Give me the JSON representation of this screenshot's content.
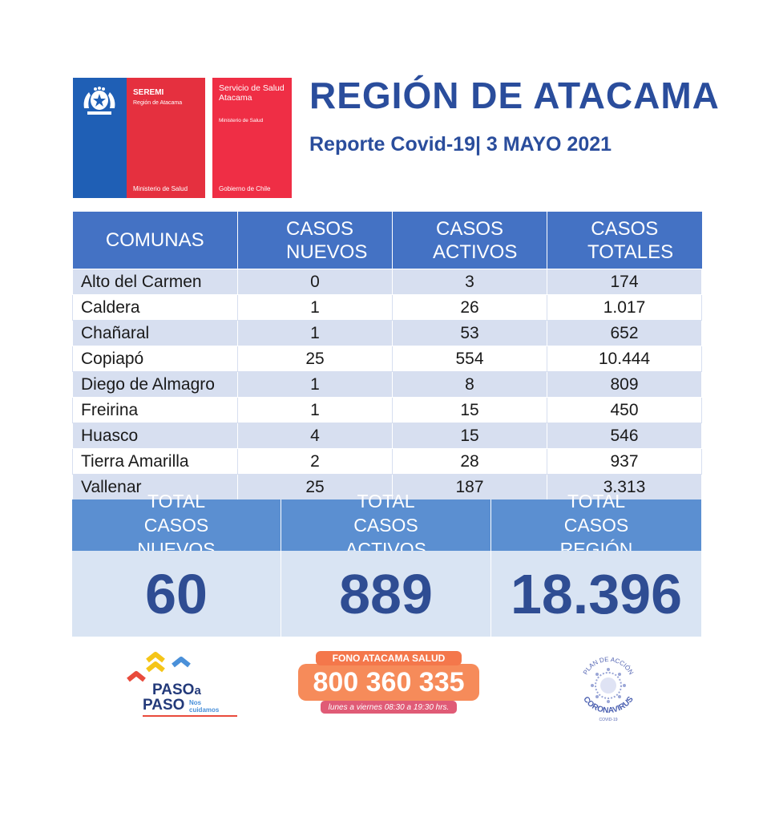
{
  "header": {
    "seremi_title": "SEREMI",
    "seremi_region": "Región de Atacama",
    "seremi_ministry": "Ministerio de Salud",
    "servicio_title": "Servicio de Salud Atacama",
    "servicio_ministry": "Ministerio de Salud",
    "servicio_gov": "Gobierno de Chile",
    "title": "REGIÓN DE ATACAMA",
    "subtitle": "Reporte Covid-19| 3 MAYO 2021"
  },
  "table": {
    "headers": [
      "COMUNAS",
      "CASOS NUEVOS",
      "CASOS ACTIVOS",
      "CASOS TOTALES"
    ],
    "rows": [
      [
        "Alto del Carmen",
        "0",
        "3",
        "174"
      ],
      [
        "Caldera",
        "1",
        "26",
        "1.017"
      ],
      [
        "Chañaral",
        "1",
        "53",
        "652"
      ],
      [
        "Copiapó",
        "25",
        "554",
        "10.444"
      ],
      [
        "Diego de Almagro",
        "1",
        "8",
        "809"
      ],
      [
        "Freirina",
        "1",
        "15",
        "450"
      ],
      [
        "Huasco",
        "4",
        "15",
        "546"
      ],
      [
        "Tierra Amarilla",
        "2",
        "28",
        "937"
      ],
      [
        "Vallenar",
        "25",
        "187",
        "3.313"
      ]
    ]
  },
  "totals": [
    {
      "label": "TOTAL CASOS NUEVOS",
      "value": "60"
    },
    {
      "label": "TOTAL CASOS ACTIVOS",
      "value": "889"
    },
    {
      "label": "TOTAL CASOS REGIÓN",
      "value": "18.396"
    }
  ],
  "footer": {
    "paso_line1": "PASO",
    "paso_a": "a",
    "paso_line2": "PASO",
    "paso_tag1": "Nos",
    "paso_tag2": "cuidamos",
    "fono_label": "FONO ATACAMA SALUD",
    "fono_number": "800 360 335",
    "fono_hours": "lunes a viernes 08:30 a 19:30 hrs.",
    "corona_top": "PLAN DE ACCIÓN",
    "corona_main": "CORONAVIRUS",
    "corona_sub": "COVID-19"
  },
  "colors": {
    "accent_blue": "#2a4d9c",
    "header_blue": "#4472c4",
    "row_band": "#d7dff0",
    "seremi_red": "#e5303f",
    "fono_orange": "#f68b5a"
  }
}
